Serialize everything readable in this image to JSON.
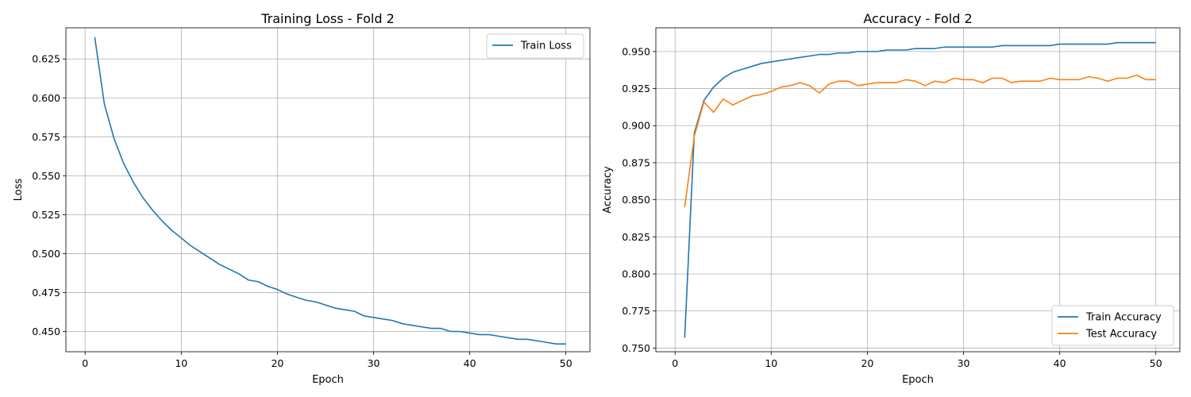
{
  "chart_data": [
    {
      "type": "line",
      "title": "Training Loss - Fold 2",
      "xlabel": "Epoch",
      "ylabel": "Loss",
      "xlim": [
        -2,
        52.5
      ],
      "ylim": [
        0.437,
        0.645
      ],
      "xticks": [
        0,
        10,
        20,
        30,
        40,
        50
      ],
      "yticks": [
        0.45,
        0.475,
        0.5,
        0.525,
        0.55,
        0.575,
        0.6,
        0.625
      ],
      "ytick_labels": [
        "0.450",
        "0.475",
        "0.500",
        "0.525",
        "0.550",
        "0.575",
        "0.600",
        "0.625"
      ],
      "grid": true,
      "legend_position": "upper right",
      "series": [
        {
          "name": "Train Loss",
          "color": "#1f77b4",
          "x": [
            1,
            2,
            3,
            4,
            5,
            6,
            7,
            8,
            9,
            10,
            11,
            12,
            13,
            14,
            15,
            16,
            17,
            18,
            19,
            20,
            21,
            22,
            23,
            24,
            25,
            26,
            27,
            28,
            29,
            30,
            31,
            32,
            33,
            34,
            35,
            36,
            37,
            38,
            39,
            40,
            41,
            42,
            43,
            44,
            45,
            46,
            47,
            48,
            49,
            50
          ],
          "values": [
            0.639,
            0.596,
            0.574,
            0.558,
            0.546,
            0.536,
            0.528,
            0.521,
            0.515,
            0.51,
            0.505,
            0.501,
            0.497,
            0.493,
            0.49,
            0.487,
            0.483,
            0.482,
            0.479,
            0.477,
            0.474,
            0.472,
            0.47,
            0.469,
            0.467,
            0.465,
            0.464,
            0.463,
            0.46,
            0.459,
            0.458,
            0.457,
            0.455,
            0.454,
            0.453,
            0.452,
            0.452,
            0.45,
            0.45,
            0.449,
            0.448,
            0.448,
            0.447,
            0.446,
            0.445,
            0.445,
            0.444,
            0.443,
            0.442,
            0.442
          ]
        }
      ]
    },
    {
      "type": "line",
      "title": "Accuracy - Fold 2",
      "xlabel": "Epoch",
      "ylabel": "Accuracy",
      "xlim": [
        -2,
        52.5
      ],
      "ylim": [
        0.7475,
        0.966
      ],
      "xticks": [
        0,
        10,
        20,
        30,
        40,
        50
      ],
      "yticks": [
        0.75,
        0.775,
        0.8,
        0.825,
        0.85,
        0.875,
        0.9,
        0.925,
        0.95
      ],
      "ytick_labels": [
        "0.750",
        "0.775",
        "0.800",
        "0.825",
        "0.850",
        "0.875",
        "0.900",
        "0.925",
        "0.950"
      ],
      "grid": true,
      "legend_position": "lower right",
      "series": [
        {
          "name": "Train Accuracy",
          "color": "#1f77b4",
          "x": [
            1,
            2,
            3,
            4,
            5,
            6,
            7,
            8,
            9,
            10,
            11,
            12,
            13,
            14,
            15,
            16,
            17,
            18,
            19,
            20,
            21,
            22,
            23,
            24,
            25,
            26,
            27,
            28,
            29,
            30,
            31,
            32,
            33,
            34,
            35,
            36,
            37,
            38,
            39,
            40,
            41,
            42,
            43,
            44,
            45,
            46,
            47,
            48,
            49,
            50
          ],
          "values": [
            0.757,
            0.895,
            0.917,
            0.926,
            0.932,
            0.936,
            0.938,
            0.94,
            0.942,
            0.943,
            0.944,
            0.945,
            0.946,
            0.947,
            0.948,
            0.948,
            0.949,
            0.949,
            0.95,
            0.95,
            0.95,
            0.951,
            0.951,
            0.951,
            0.952,
            0.952,
            0.952,
            0.953,
            0.953,
            0.953,
            0.953,
            0.953,
            0.953,
            0.954,
            0.954,
            0.954,
            0.954,
            0.954,
            0.954,
            0.955,
            0.955,
            0.955,
            0.955,
            0.955,
            0.955,
            0.956,
            0.956,
            0.956,
            0.956,
            0.956
          ]
        },
        {
          "name": "Test Accuracy",
          "color": "#ff7f0e",
          "x": [
            1,
            2,
            3,
            4,
            5,
            6,
            7,
            8,
            9,
            10,
            11,
            12,
            13,
            14,
            15,
            16,
            17,
            18,
            19,
            20,
            21,
            22,
            23,
            24,
            25,
            26,
            27,
            28,
            29,
            30,
            31,
            32,
            33,
            34,
            35,
            36,
            37,
            38,
            39,
            40,
            41,
            42,
            43,
            44,
            45,
            46,
            47,
            48,
            49,
            50
          ],
          "values": [
            0.845,
            0.893,
            0.916,
            0.909,
            0.918,
            0.914,
            0.917,
            0.92,
            0.921,
            0.923,
            0.926,
            0.927,
            0.929,
            0.927,
            0.922,
            0.928,
            0.93,
            0.93,
            0.927,
            0.928,
            0.929,
            0.929,
            0.929,
            0.931,
            0.93,
            0.927,
            0.93,
            0.929,
            0.932,
            0.931,
            0.931,
            0.929,
            0.932,
            0.932,
            0.929,
            0.93,
            0.93,
            0.93,
            0.932,
            0.931,
            0.931,
            0.931,
            0.933,
            0.932,
            0.93,
            0.932,
            0.932,
            0.934,
            0.931,
            0.931
          ]
        }
      ]
    }
  ]
}
